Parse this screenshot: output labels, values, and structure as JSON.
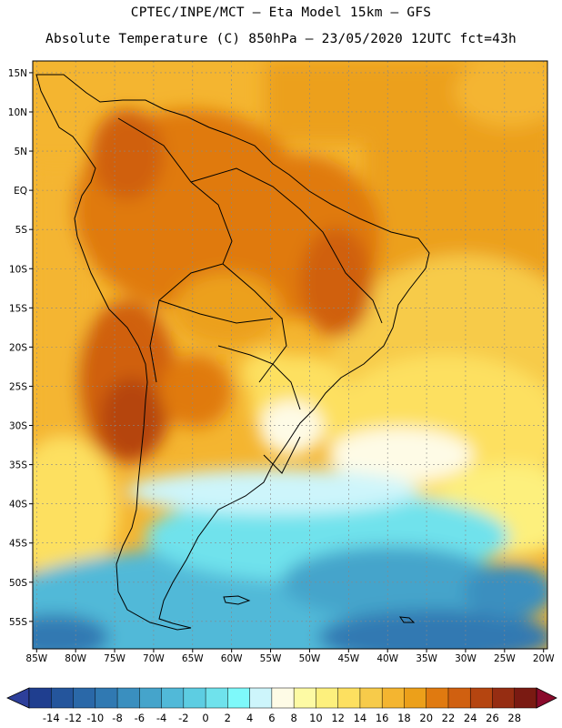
{
  "header": {
    "title_line1": "CPTEC/INPE/MCT –  Eta Model 15km – GFS",
    "title_line2": "Absolute Temperature (C) 850hPa – 23/05/2020 12UTC fct=43h"
  },
  "map": {
    "lon_labels": [
      "85W",
      "80W",
      "75W",
      "70W",
      "65W",
      "60W",
      "55W",
      "50W",
      "45W",
      "40W",
      "35W",
      "30W",
      "25W",
      "20W"
    ],
    "lat_labels": [
      "15N",
      "10N",
      "5N",
      "EQ",
      "5S",
      "10S",
      "15S",
      "20S",
      "25S",
      "30S",
      "35S",
      "40S",
      "45S",
      "50S",
      "55S"
    ],
    "lon_values": [
      -85,
      -80,
      -75,
      -70,
      -65,
      -60,
      -55,
      -50,
      -45,
      -40,
      -35,
      -30,
      -25,
      -20
    ],
    "lat_values": [
      15,
      10,
      5,
      0,
      -5,
      -10,
      -15,
      -20,
      -25,
      -30,
      -35,
      -40,
      -45,
      -50,
      -55
    ],
    "lon_range": [
      -85.5,
      -19.5
    ],
    "lat_range": [
      -58.5,
      16.5
    ],
    "gridlines": true,
    "dominant_field": "warm 18-24C over tropical South America; cold 2-6C band south of 40S",
    "lon_lat_note": "land outline drawn approximately"
  },
  "colorbar": {
    "labels": [
      "-14",
      "-12",
      "-10",
      "-8",
      "-6",
      "-4",
      "-2",
      "0",
      "2",
      "4",
      "6",
      "8",
      "10",
      "12",
      "14",
      "16",
      "18",
      "20",
      "22",
      "24",
      "26",
      "28"
    ],
    "colors": [
      "#1f3e8f",
      "#24559c",
      "#2a68a8",
      "#3079b2",
      "#3a8fbf",
      "#45a4cb",
      "#51b9d8",
      "#5dcde2",
      "#6fe2ec",
      "#7ef9fa",
      "#cdf5fb",
      "#fefbe6",
      "#fdfaa4",
      "#fdf07d",
      "#fde060",
      "#f7cb4a",
      "#f4b530",
      "#eca01a",
      "#e07a10",
      "#d06010",
      "#b54510",
      "#962d12",
      "#7a1a12"
    ],
    "under_color": "#2d3f9a",
    "over_color": "#8a0a2c"
  }
}
